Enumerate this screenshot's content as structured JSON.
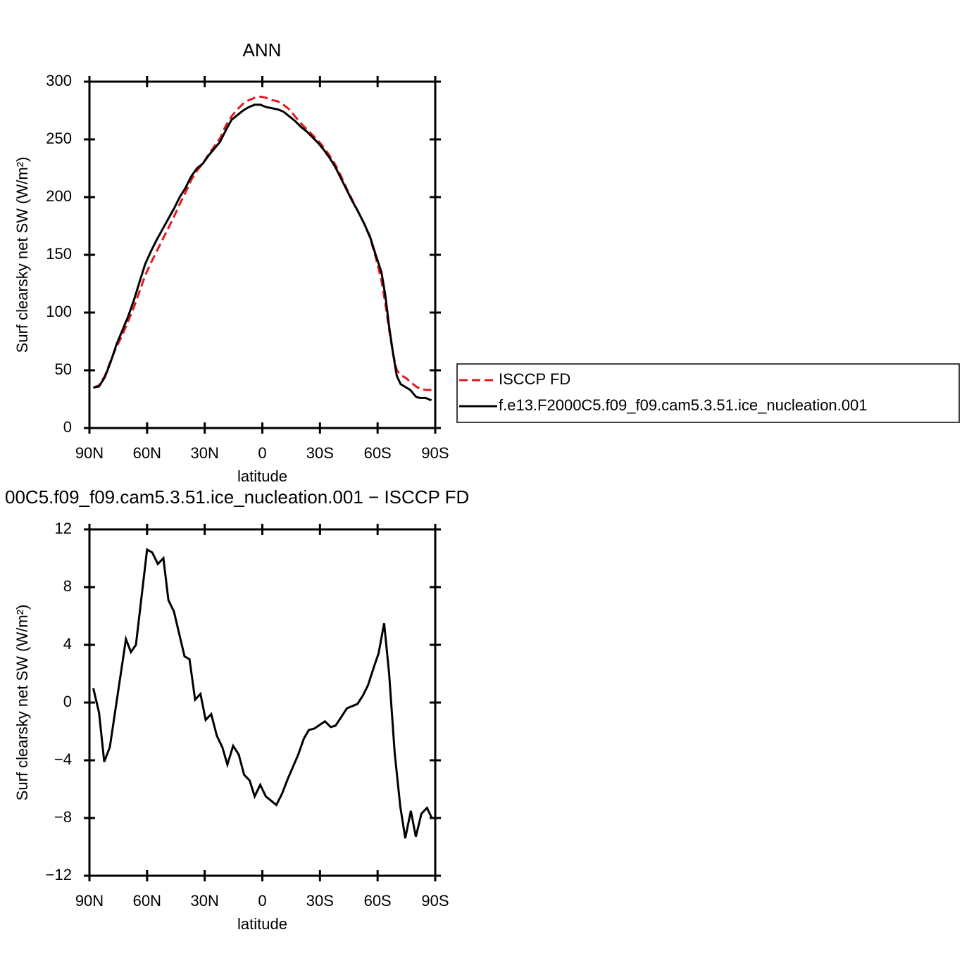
{
  "chart_data": [
    {
      "type": "line",
      "title": "ANN",
      "xlabel": "latitude",
      "ylabel": "Surf clearsky net SW (W/m²)",
      "x": [
        88,
        85,
        82,
        79,
        76,
        73,
        70,
        67,
        64,
        61,
        58,
        55,
        52,
        49,
        46,
        43,
        40,
        37,
        34,
        31,
        28,
        25,
        22,
        19,
        16,
        13,
        10,
        7,
        4,
        1,
        -2,
        -5,
        -8,
        -11,
        -14,
        -17,
        -20,
        -23,
        -26,
        -29,
        -32,
        -35,
        -38,
        -41,
        -44,
        -47,
        -50,
        -53,
        -56,
        -59,
        -62,
        -64,
        -66,
        -68,
        -70,
        -72,
        -75,
        -77,
        -80,
        -82,
        -85,
        -88
      ],
      "series": [
        {
          "name": "ISCCP FD",
          "color": "#e41a1c",
          "linestyle": "dashed",
          "values": [
            35,
            37,
            45,
            58,
            70,
            80,
            92,
            104,
            118,
            132,
            143,
            153,
            163,
            173,
            183,
            194,
            204,
            215,
            223,
            229,
            237,
            244,
            251,
            262,
            270,
            276,
            281,
            284,
            286,
            287,
            286,
            284,
            283,
            280,
            276,
            270,
            264,
            259,
            254,
            249,
            243,
            236,
            228,
            218,
            207,
            197,
            187,
            177,
            165,
            148,
            128,
            108,
            85,
            65,
            50,
            46,
            43,
            40,
            36,
            34,
            33,
            33
          ]
        },
        {
          "name": "f.e13.F2000C5.f09_f09.cam5.3.51.ice_nucleation.001",
          "color": "#000000",
          "linestyle": "solid",
          "values": [
            35,
            36,
            44,
            57,
            72,
            84,
            96,
            110,
            126,
            142,
            153,
            163,
            172,
            181,
            190,
            200,
            208,
            218,
            225,
            229,
            236,
            242,
            248,
            258,
            267,
            271,
            275,
            278,
            280,
            280,
            278,
            277,
            276,
            274,
            270,
            266,
            261,
            257,
            252,
            247,
            241,
            234,
            226,
            216,
            206,
            196,
            187,
            177,
            166,
            150,
            135,
            115,
            88,
            65,
            45,
            38,
            35,
            33,
            27,
            26,
            26,
            24
          ]
        }
      ],
      "xlim": [
        90,
        -90
      ],
      "xticks": [
        {
          "value": 90,
          "label": "90N"
        },
        {
          "value": 60,
          "label": "60N"
        },
        {
          "value": 30,
          "label": "30N"
        },
        0,
        {
          "value": -30,
          "label": "30S"
        },
        {
          "value": -60,
          "label": "60S"
        },
        {
          "value": -90,
          "label": "90S"
        }
      ],
      "ylim": [
        0,
        300
      ],
      "yticks": [
        0,
        50,
        100,
        150,
        200,
        250,
        300
      ],
      "legend": "right"
    },
    {
      "type": "line",
      "title": "00C5.f09_f09.cam5.3.51.ice_nucleation.001 − ISCCP FD",
      "xlabel": "latitude",
      "ylabel": "Surf clearsky net SW (W/m²)",
      "x": [
        88,
        85,
        82.3,
        79.4,
        71,
        68.4,
        65.8,
        60,
        57.3,
        54.4,
        51.5,
        48.9,
        46,
        40.5,
        37.9,
        35,
        32.2,
        29.5,
        26.6,
        23.7,
        20.8,
        18.2,
        15.2,
        12.3,
        9.5,
        6.6,
        4,
        1.1,
        -1.8,
        -7.3,
        -10.3,
        -13.2,
        -18.7,
        -21.6,
        -24.2,
        -27.1,
        -32.6,
        -35.6,
        -38.1,
        -41.1,
        -44,
        -49.5,
        -52.4,
        -55,
        -57.9,
        -60.5,
        -63.4,
        -66,
        -68.9,
        -71.8,
        -74.4,
        -77.3,
        -79.9,
        -82.8,
        -85.7,
        -88.2
      ],
      "series": [
        {
          "color": "#000000",
          "linestyle": "solid",
          "values": [
            1,
            -0.7,
            -4.1,
            -3.1,
            4.4,
            3.5,
            4.0,
            10.6,
            10.4,
            9.6,
            10.0,
            7.1,
            6.3,
            3.2,
            3.0,
            0.2,
            0.6,
            -1.2,
            -0.8,
            -2.3,
            -3.1,
            -4.3,
            -3.0,
            -3.6,
            -5.0,
            -5.4,
            -6.5,
            -5.7,
            -6.5,
            -7.1,
            -6.3,
            -5.3,
            -3.6,
            -2.5,
            -1.9,
            -1.8,
            -1.3,
            -1.7,
            -1.6,
            -1.0,
            -0.4,
            -0.1,
            0.5,
            1.2,
            2.4,
            3.4,
            5.5,
            2.0,
            -3.5,
            -7.2,
            -9.4,
            -7.5,
            -9.3,
            -7.7,
            -7.3,
            -8.0
          ]
        }
      ],
      "xlim": [
        90,
        -90
      ],
      "xticks": [
        {
          "value": 90,
          "label": "90N"
        },
        {
          "value": 60,
          "label": "60N"
        },
        {
          "value": 30,
          "label": "30N"
        },
        0,
        {
          "value": -30,
          "label": "30S"
        },
        {
          "value": -60,
          "label": "60S"
        },
        {
          "value": -90,
          "label": "90S"
        }
      ],
      "ylim": [
        -12,
        12
      ],
      "yticks": [
        {
          "value": -12,
          "label": "−12"
        },
        {
          "value": -8,
          "label": "−8"
        },
        {
          "value": -4,
          "label": "−4"
        },
        0,
        4,
        8,
        12
      ]
    }
  ]
}
